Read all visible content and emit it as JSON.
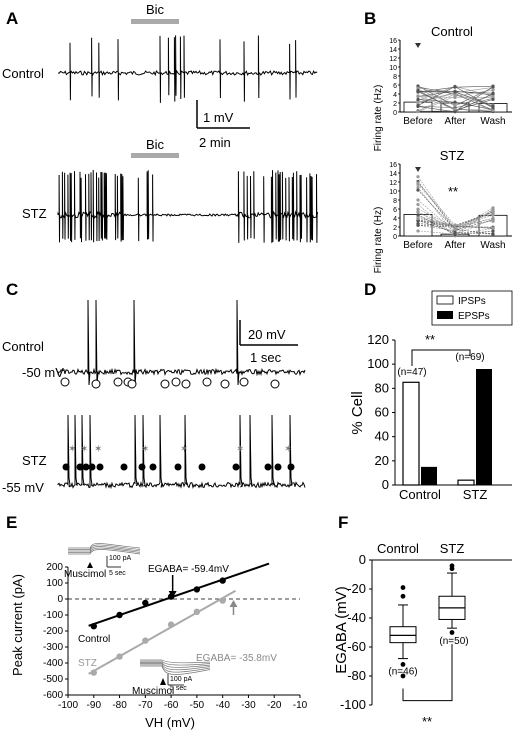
{
  "panels": {
    "A": "A",
    "B": "B",
    "C": "C",
    "D": "D",
    "E": "E",
    "F": "F"
  },
  "panel_a": {
    "drug_label_top": "Bic",
    "drug_label_bottom": "Bic",
    "trace_labels": [
      "Control",
      "STZ"
    ],
    "scale_v": "1 mV",
    "scale_t": "2 min"
  },
  "panel_b": {
    "titles": [
      "Control",
      "STZ"
    ],
    "ylabel": "Firing rate (Hz)",
    "ticks": [
      "0",
      "2",
      "4",
      "6",
      "8",
      "10",
      "12",
      "14",
      "16"
    ],
    "conditions": [
      "Before",
      "After",
      "Wash"
    ],
    "significance": "**"
  },
  "panel_c": {
    "labels": [
      "Control",
      "STZ"
    ],
    "voltages": [
      "-50 mV",
      "-55 mV"
    ],
    "scale_v": "20 mV",
    "scale_t": "1 sec"
  },
  "chart_data": [
    {
      "type": "bar",
      "title": "",
      "ylabel": "% Cell",
      "categories": [
        "Control",
        "STZ"
      ],
      "series": [
        {
          "name": "IPSPs",
          "values": [
            85,
            4
          ]
        },
        {
          "name": "EPSPs",
          "values": [
            15,
            96
          ]
        }
      ],
      "ylim": [
        0,
        120
      ],
      "yticks": [
        "0",
        "20",
        "40",
        "60",
        "80",
        "100",
        "120"
      ],
      "n_labels": [
        "(n=47)",
        "(n=69)"
      ],
      "significance": "**",
      "legend": "top"
    },
    {
      "type": "scatter",
      "title": "",
      "xlabel": "VH (mV)",
      "ylabel": "Peak current (pA)",
      "xlim": [
        -100,
        -10
      ],
      "ylim": [
        -600,
        200
      ],
      "xticks": [
        "-100",
        "-90",
        "-80",
        "-70",
        "-60",
        "-50",
        "-40",
        "-30",
        "-20",
        "-10"
      ],
      "yticks": [
        "200",
        "100",
        "0",
        "-100",
        "-200",
        "-300",
        "-400",
        "-500",
        "-600"
      ],
      "series": [
        {
          "name": "Control",
          "x": [
            -90,
            -80,
            -70,
            -60,
            -50,
            -40
          ],
          "y": [
            -170,
            -100,
            -25,
            15,
            60,
            115
          ],
          "egaba": "EGABA= -59.4mV"
        },
        {
          "name": "STZ",
          "x": [
            -90,
            -80,
            -70,
            -60,
            -50,
            -40
          ],
          "y": [
            -460,
            -360,
            -260,
            -160,
            -80,
            -10
          ],
          "egaba": "EGABA= -35.8mV"
        }
      ],
      "inset_labels": {
        "muscimol": "Muscimol",
        "scale_i": "100 pA",
        "scale_t": "5 sec"
      }
    },
    {
      "type": "box",
      "title": "",
      "ylabel": "EGABA (mV)",
      "categories": [
        "Control",
        "STZ"
      ],
      "ylim": [
        -100,
        0
      ],
      "yticks": [
        "0",
        "-20",
        "-40",
        "-60",
        "-80",
        "-100"
      ],
      "boxes": [
        {
          "name": "Control",
          "median": -52,
          "q1": -57,
          "q3": -46,
          "whisker_low": -68,
          "whisker_high": -31,
          "outliers": [
            -19,
            -25,
            -72,
            -80
          ],
          "n": "(n=46)"
        },
        {
          "name": "STZ",
          "median": -33,
          "q1": -41,
          "q3": -25,
          "whisker_low": -47,
          "whisker_high": -9,
          "outliers": [
            -4,
            -6,
            -50
          ],
          "n": "(n=50)"
        }
      ],
      "significance": "**"
    }
  ]
}
